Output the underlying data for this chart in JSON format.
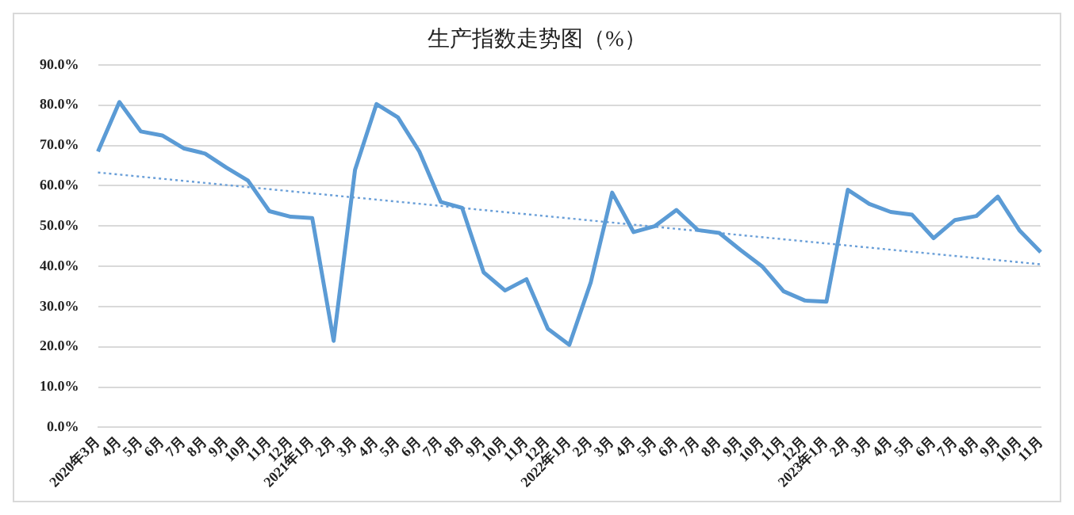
{
  "chart_data": {
    "type": "line",
    "title": "生产指数走势图（%）",
    "categories": [
      "2020年3月",
      "4月",
      "5月",
      "6月",
      "7月",
      "8月",
      "9月",
      "10月",
      "11月",
      "12月",
      "2021年1月",
      "2月",
      "3月",
      "4月",
      "5月",
      "6月",
      "7月",
      "8月",
      "9月",
      "10月",
      "11月",
      "12月",
      "2022年1月",
      "2月",
      "3月",
      "4月",
      "5月",
      "6月",
      "7月",
      "8月",
      "9月",
      "10月",
      "11月",
      "12月",
      "2023年1月",
      "2月",
      "3月",
      "4月",
      "5月",
      "6月",
      "7月",
      "8月",
      "9月",
      "10月",
      "11月"
    ],
    "series": [
      {
        "color": "#5b9bd5",
        "line_style": "solid",
        "values": [
          68.5,
          80.8,
          73.5,
          72.5,
          69.3,
          68,
          64.5,
          61.3,
          53.7,
          52.3,
          52,
          21.5,
          64,
          80.3,
          77,
          68.5,
          56,
          54.5,
          38.5,
          34,
          36.8,
          24.5,
          20.5,
          36,
          58.3,
          48.5,
          50,
          54,
          49,
          48.3,
          44,
          40,
          33.8,
          31.5,
          31.2,
          59,
          55.5,
          53.5,
          52.8,
          47,
          51.5,
          52.5,
          57.3,
          49,
          43.5
        ]
      },
      {
        "color": "#6a9fd8",
        "line_style": "dotted",
        "values": [
          63.3,
          null,
          null,
          null,
          null,
          null,
          null,
          null,
          null,
          null,
          null,
          null,
          null,
          null,
          null,
          null,
          null,
          null,
          null,
          null,
          null,
          null,
          null,
          null,
          null,
          null,
          null,
          null,
          null,
          null,
          null,
          null,
          null,
          null,
          null,
          null,
          null,
          null,
          null,
          null,
          null,
          null,
          null,
          null,
          40.5
        ]
      }
    ],
    "ylim": [
      0,
      90
    ],
    "yticks": [
      {
        "value": 0,
        "label": "0.0%"
      },
      {
        "value": 10,
        "label": "10.0%"
      },
      {
        "value": 20,
        "label": "20.0%"
      },
      {
        "value": 30,
        "label": "30.0%"
      },
      {
        "value": 40,
        "label": "40.0%"
      },
      {
        "value": 50,
        "label": "50.0%"
      },
      {
        "value": 60,
        "label": "60.0%"
      },
      {
        "value": 70,
        "label": "70.0%"
      },
      {
        "value": 80,
        "label": "80.0%"
      },
      {
        "value": 90,
        "label": "90.0%"
      }
    ],
    "grid": "y",
    "legend": false,
    "marker": "none"
  }
}
